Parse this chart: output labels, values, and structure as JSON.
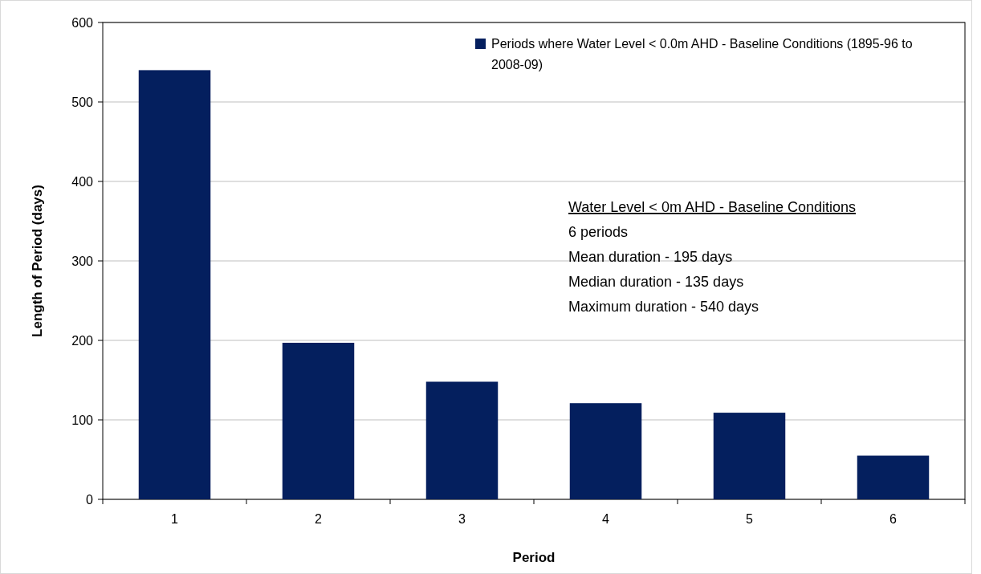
{
  "chart_data": {
    "type": "bar",
    "xlabel": "Period",
    "ylabel": "Length of Period (days)",
    "categories": [
      "1",
      "2",
      "3",
      "4",
      "5",
      "6"
    ],
    "series": [
      {
        "name": "Periods where Water Level < 0.0m AHD - Baseline Conditions (1895-96 to 2008-09)",
        "color": "#041f5e",
        "values": [
          540,
          197,
          148,
          121,
          109,
          55
        ]
      }
    ],
    "ylim": [
      0,
      600
    ],
    "yticks": [
      0,
      100,
      200,
      300,
      400,
      500,
      600
    ],
    "grid": "y",
    "legend": "top right",
    "annotations": [
      "Water Level < 0m AHD - Baseline Conditions",
      "6 periods",
      "Mean duration  - 195 days",
      "Median duration - 135 days",
      "Maximum duration - 540 days"
    ]
  }
}
